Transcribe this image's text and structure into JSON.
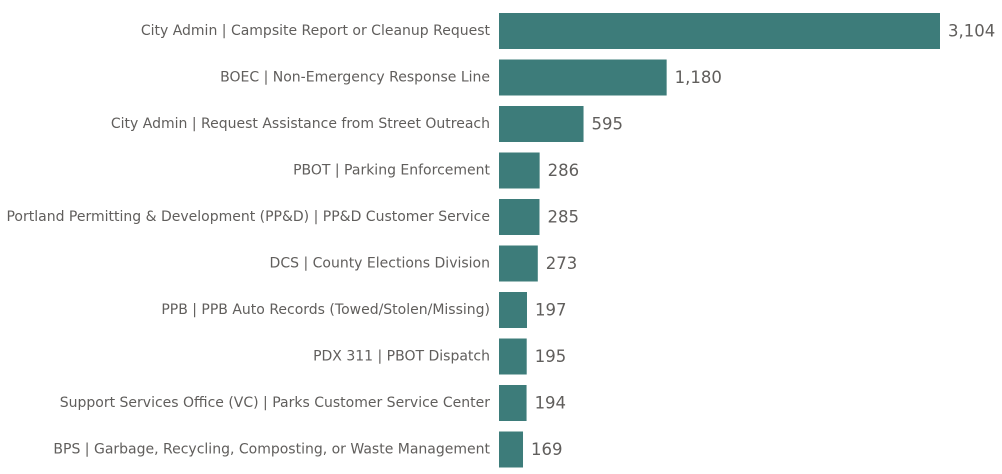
{
  "chart_data": {
    "type": "bar",
    "orientation": "horizontal",
    "categories": [
      "City Admin | Campsite Report or Cleanup Request",
      "BOEC | Non-Emergency Response Line",
      "City Admin | Request Assistance from Street Outreach",
      "PBOT | Parking Enforcement",
      "Portland Permitting & Development (PP&D) | PP&D Customer Service",
      "DCS | County Elections Division",
      "PPB | PPB Auto Records (Towed/Stolen/Missing)",
      "PDX 311 | PBOT Dispatch",
      "Support Services Office (VC) | Parks Customer Service Center",
      "BPS | Garbage, Recycling, Composting, or Waste Management"
    ],
    "values": [
      3104,
      1180,
      595,
      286,
      285,
      273,
      197,
      195,
      194,
      169
    ],
    "value_labels": [
      "3,104",
      "1,180",
      "595",
      "286",
      "285",
      "273",
      "197",
      "195",
      "194",
      "169"
    ],
    "xlim": [
      0,
      3104
    ],
    "grid": false,
    "bar_color": "#3d7c7a"
  }
}
